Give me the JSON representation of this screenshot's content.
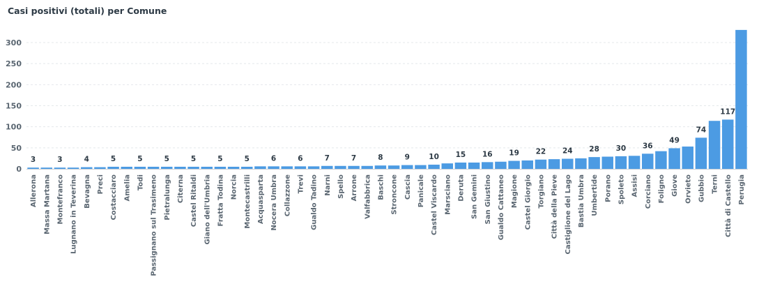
{
  "chart_data": {
    "type": "bar",
    "title": "Casi positivi (totali) per Comune",
    "xlabel": "",
    "ylabel": "",
    "ylim": [
      0,
      330
    ],
    "yticks": [
      0,
      50,
      100,
      150,
      200,
      250,
      300
    ],
    "grid": true,
    "legend": "none",
    "bar_color": "#4c9be3",
    "categories": [
      "Allerona",
      "Massa Martana",
      "Montefranco",
      "Lugnano in Teverina",
      "Bevagna",
      "Preci",
      "Costacciaro",
      "Amelia",
      "Todi",
      "Passignano sul Trasimeno",
      "Pietralunga",
      "Citerna",
      "Castel Ritaldi",
      "Giano dell'Umbria",
      "Fratta Todina",
      "Norcia",
      "Montecastrilli",
      "Acquasparta",
      "Nocera Umbra",
      "Collazzone",
      "Trevi",
      "Gualdo Tadino",
      "Narni",
      "Spello",
      "Arrone",
      "Valfabbrica",
      "Baschi",
      "Stroncone",
      "Cascia",
      "Panicale",
      "Castel Viscardo",
      "Marsciano",
      "Deruta",
      "San Gemini",
      "San Giustino",
      "Gualdo Cattaneo",
      "Magione",
      "Castel Giorgio",
      "Torgiano",
      "Città della Pieve",
      "Castiglione del Lago",
      "Bastia Umbra",
      "Umbertide",
      "Porano",
      "Spoleto",
      "Assisi",
      "Corciano",
      "Foligno",
      "Giove",
      "Orvieto",
      "Gubbio",
      "Terni",
      "Città di Castello",
      "Perugia"
    ],
    "values": [
      3,
      3,
      3,
      3,
      4,
      4,
      5,
      5,
      5,
      5,
      5,
      5,
      5,
      5,
      5,
      5,
      5,
      6,
      6,
      6,
      6,
      6,
      7,
      7,
      7,
      7,
      8,
      8,
      9,
      9,
      10,
      13,
      15,
      15,
      16,
      17,
      19,
      20,
      22,
      23,
      24,
      25,
      28,
      29,
      30,
      31,
      36,
      42,
      49,
      53,
      74,
      114,
      117,
      330
    ],
    "labels": [
      {
        "index": 0,
        "text": "3"
      },
      {
        "index": 2,
        "text": "3"
      },
      {
        "index": 4,
        "text": "4"
      },
      {
        "index": 6,
        "text": "5"
      },
      {
        "index": 8,
        "text": "5"
      },
      {
        "index": 10,
        "text": "5"
      },
      {
        "index": 12,
        "text": "5"
      },
      {
        "index": 14,
        "text": "5"
      },
      {
        "index": 16,
        "text": "5"
      },
      {
        "index": 18,
        "text": "6"
      },
      {
        "index": 20,
        "text": "6"
      },
      {
        "index": 22,
        "text": "7"
      },
      {
        "index": 24,
        "text": "7"
      },
      {
        "index": 26,
        "text": "8"
      },
      {
        "index": 28,
        "text": "9"
      },
      {
        "index": 30,
        "text": "10"
      },
      {
        "index": 32,
        "text": "15"
      },
      {
        "index": 34,
        "text": "16"
      },
      {
        "index": 36,
        "text": "19"
      },
      {
        "index": 38,
        "text": "22"
      },
      {
        "index": 40,
        "text": "24"
      },
      {
        "index": 42,
        "text": "28"
      },
      {
        "index": 44,
        "text": "30"
      },
      {
        "index": 46,
        "text": "36"
      },
      {
        "index": 48,
        "text": "49"
      },
      {
        "index": 50,
        "text": "74"
      },
      {
        "index": 52,
        "text": "117"
      }
    ]
  }
}
